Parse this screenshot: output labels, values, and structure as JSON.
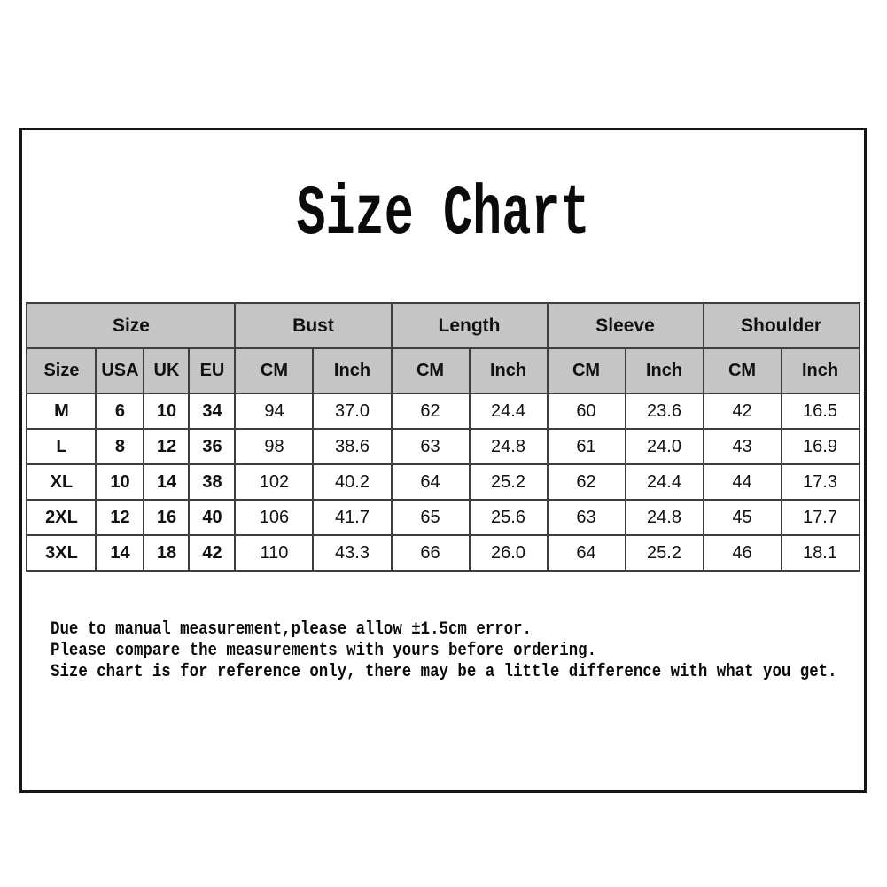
{
  "page": {
    "title": "Size Chart"
  },
  "table": {
    "group_headers": [
      {
        "label": "Size",
        "span": 4
      },
      {
        "label": "Bust",
        "span": 2
      },
      {
        "label": "Length",
        "span": 2
      },
      {
        "label": "Sleeve",
        "span": 2
      },
      {
        "label": "Shoulder",
        "span": 2
      }
    ],
    "sub_headers": [
      "Size",
      "USA",
      "UK",
      "EU",
      "CM",
      "Inch",
      "CM",
      "Inch",
      "CM",
      "Inch",
      "CM",
      "Inch"
    ],
    "rows": [
      {
        "cells": [
          "M",
          "6",
          "10",
          "34",
          "94",
          "37.0",
          "62",
          "24.4",
          "60",
          "23.6",
          "42",
          "16.5"
        ]
      },
      {
        "cells": [
          "L",
          "8",
          "12",
          "36",
          "98",
          "38.6",
          "63",
          "24.8",
          "61",
          "24.0",
          "43",
          "16.9"
        ]
      },
      {
        "cells": [
          "XL",
          "10",
          "14",
          "38",
          "102",
          "40.2",
          "64",
          "25.2",
          "62",
          "24.4",
          "44",
          "17.3"
        ]
      },
      {
        "cells": [
          "2XL",
          "12",
          "16",
          "40",
          "106",
          "41.7",
          "65",
          "25.6",
          "63",
          "24.8",
          "45",
          "17.7"
        ]
      },
      {
        "cells": [
          "3XL",
          "14",
          "18",
          "42",
          "110",
          "43.3",
          "66",
          "26.0",
          "64",
          "25.2",
          "46",
          "18.1"
        ]
      }
    ]
  },
  "notes": {
    "lines": [
      "Due to manual measurement,please allow ±1.5cm error.",
      "Please compare the measurements with yours before ordering.",
      "Size chart is for reference only, there may be a little difference with what you get."
    ]
  },
  "colors": {
    "header_bg": "#c5c5c5",
    "cell_border": "#3e3e3e",
    "frame_border": "#161616",
    "text": "#111111"
  }
}
